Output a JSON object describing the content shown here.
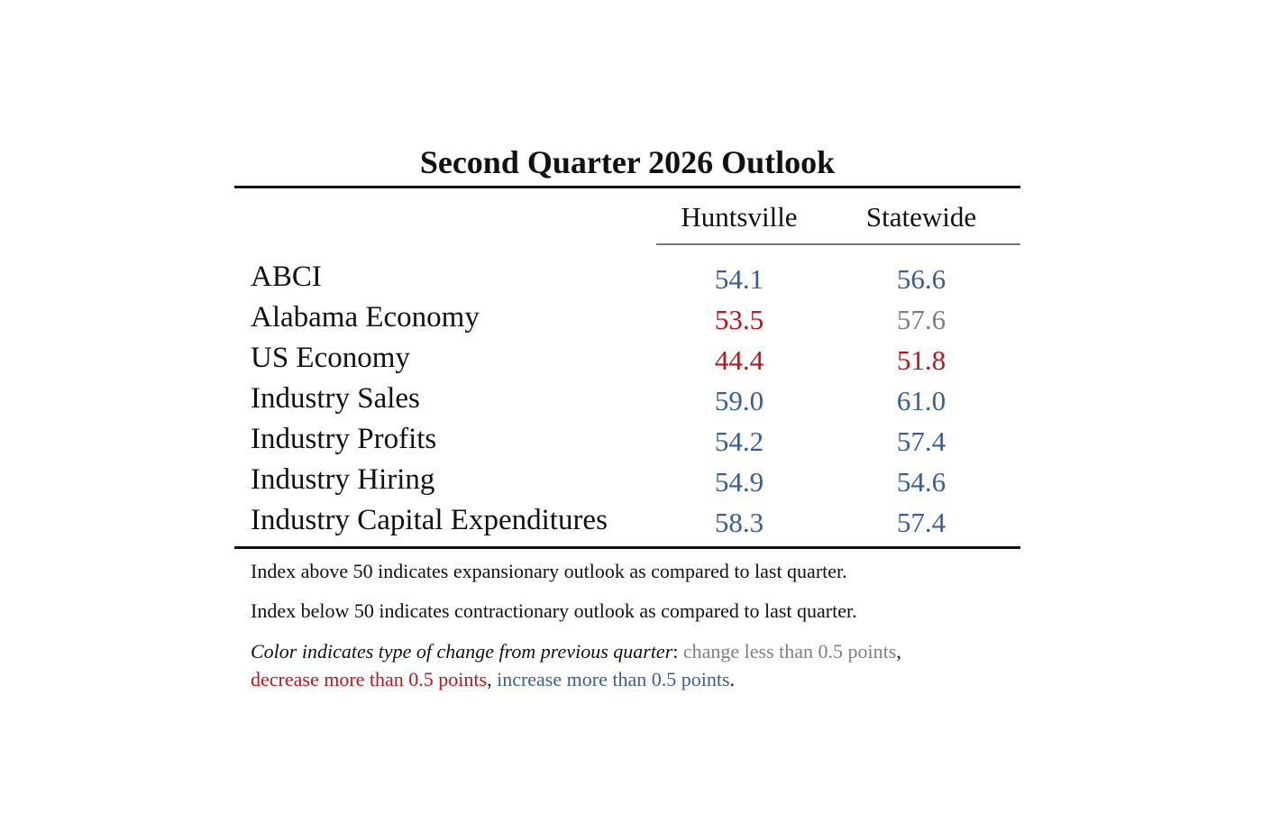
{
  "colors": {
    "increase": "#3a5c9c",
    "decrease": "#c0141c",
    "neutral": "#7f7f7f",
    "text": "#111111"
  },
  "chart_data": {
    "type": "table",
    "title": "Second Quarter 2026 Outlook",
    "columns": [
      "Huntsville",
      "Statewide"
    ],
    "rows": [
      {
        "label": "ABCI",
        "values": [
          "54.1",
          "56.6"
        ],
        "change": [
          "increase",
          "increase"
        ]
      },
      {
        "label": "Alabama Economy",
        "values": [
          "53.5",
          "57.6"
        ],
        "change": [
          "decrease",
          "neutral"
        ]
      },
      {
        "label": "US Economy",
        "values": [
          "44.4",
          "51.8"
        ],
        "change": [
          "decrease",
          "decrease"
        ]
      },
      {
        "label": "Industry Sales",
        "values": [
          "59.0",
          "61.0"
        ],
        "change": [
          "increase",
          "increase"
        ]
      },
      {
        "label": "Industry Profits",
        "values": [
          "54.2",
          "57.4"
        ],
        "change": [
          "increase",
          "increase"
        ]
      },
      {
        "label": "Industry Hiring",
        "values": [
          "54.9",
          "54.6"
        ],
        "change": [
          "increase",
          "increase"
        ]
      },
      {
        "label": "Industry Capital Expenditures",
        "values": [
          "58.3",
          "57.4"
        ],
        "change": [
          "increase",
          "increase"
        ]
      }
    ]
  },
  "notes": {
    "above": "Index above 50 indicates expansionary outlook as compared to last quarter.",
    "below": "Index below 50 indicates contractionary outlook as compared to last quarter.",
    "legend_lead": "Color indicates type of change from previous quarter",
    "legend_colon": ": ",
    "legend_neutral": "change less than 0.5 points",
    "legend_sep1": ",",
    "legend_decrease": "decrease more than 0.5 points",
    "legend_sep2": ", ",
    "legend_increase": "increase more than 0.5 points",
    "legend_end": "."
  }
}
